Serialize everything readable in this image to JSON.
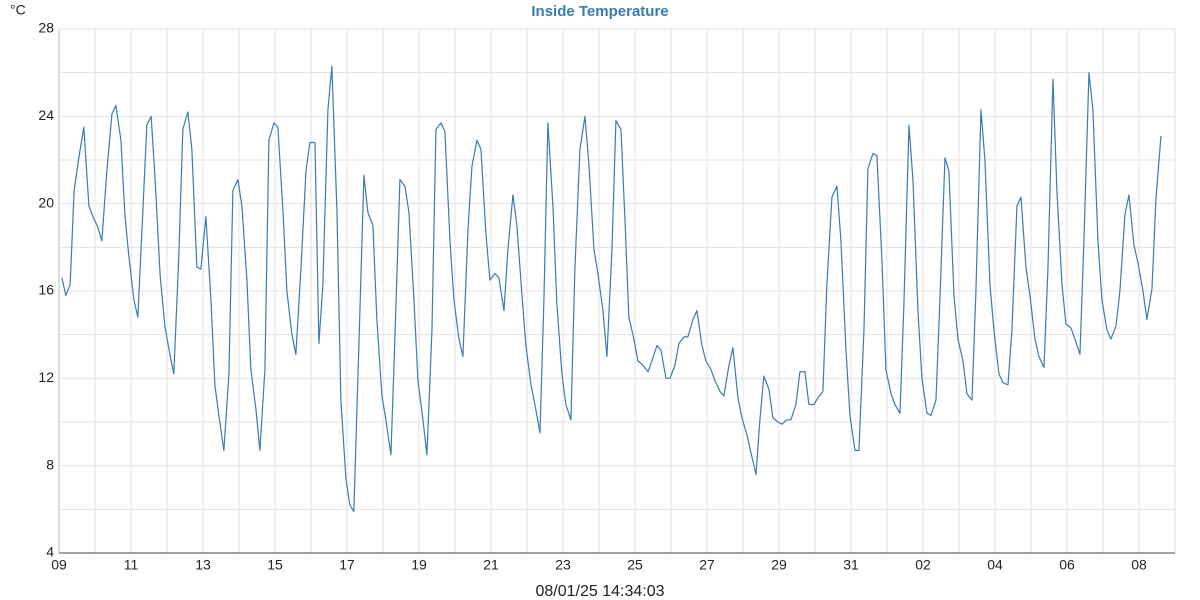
{
  "chart_data": {
    "type": "line",
    "title": "Inside Temperature",
    "ylabel": "°C",
    "xlabel": "08/01/25 14:34:03",
    "xlim": [
      0,
      31
    ],
    "ylim": [
      4,
      28
    ],
    "xticks": [
      {
        "value": 0,
        "label": "09"
      },
      {
        "value": 2,
        "label": "11"
      },
      {
        "value": 4,
        "label": "13"
      },
      {
        "value": 6,
        "label": "15"
      },
      {
        "value": 8,
        "label": "17"
      },
      {
        "value": 10,
        "label": "19"
      },
      {
        "value": 12,
        "label": "21"
      },
      {
        "value": 14,
        "label": "23"
      },
      {
        "value": 16,
        "label": "25"
      },
      {
        "value": 18,
        "label": "27"
      },
      {
        "value": 20,
        "label": "29"
      },
      {
        "value": 22,
        "label": "31"
      },
      {
        "value": 24,
        "label": "02"
      },
      {
        "value": 26,
        "label": "04"
      },
      {
        "value": 28,
        "label": "06"
      },
      {
        "value": 30,
        "label": "08"
      }
    ],
    "x_minor_ticks": [
      1,
      3,
      5,
      7,
      9,
      11,
      13,
      15,
      17,
      19,
      21,
      23,
      25,
      27,
      29,
      31
    ],
    "yticks": [
      4,
      8,
      12,
      16,
      20,
      24,
      28
    ],
    "y_minor_ticks": [
      6,
      10,
      14,
      18,
      22,
      26
    ],
    "grid": true,
    "series": [
      {
        "name": "Inside Temperature",
        "color": "#3a7bb5",
        "x": [
          0.08,
          0.19,
          0.31,
          0.42,
          0.56,
          0.69,
          0.83,
          0.97,
          1.06,
          1.19,
          1.33,
          1.47,
          1.58,
          1.72,
          1.83,
          1.94,
          2.08,
          2.19,
          2.33,
          2.44,
          2.56,
          2.67,
          2.81,
          2.94,
          3.08,
          3.19,
          3.33,
          3.44,
          3.58,
          3.69,
          3.83,
          3.94,
          4.08,
          4.22,
          4.33,
          4.44,
          4.58,
          4.72,
          4.83,
          4.97,
          5.08,
          5.22,
          5.33,
          5.47,
          5.58,
          5.72,
          5.83,
          5.97,
          6.08,
          6.22,
          6.33,
          6.47,
          6.58,
          6.72,
          6.86,
          6.97,
          7.11,
          7.22,
          7.33,
          7.47,
          7.58,
          7.72,
          7.83,
          7.97,
          8.08,
          8.19,
          8.33,
          8.47,
          8.58,
          8.72,
          8.83,
          8.97,
          9.08,
          9.22,
          9.33,
          9.47,
          9.61,
          9.72,
          9.86,
          9.97,
          10.11,
          10.22,
          10.36,
          10.47,
          10.61,
          10.72,
          10.86,
          10.97,
          11.11,
          11.22,
          11.36,
          11.47,
          11.61,
          11.72,
          11.86,
          11.97,
          12.11,
          12.22,
          12.36,
          12.47,
          12.61,
          12.72,
          12.86,
          12.97,
          13.11,
          13.22,
          13.36,
          13.47,
          13.58,
          13.72,
          13.83,
          13.97,
          14.08,
          14.22,
          14.33,
          14.47,
          14.61,
          14.72,
          14.86,
          14.97,
          15.11,
          15.22,
          15.36,
          15.47,
          15.61,
          15.72,
          15.83,
          15.97,
          16.08,
          16.22,
          16.36,
          16.47,
          16.61,
          16.72,
          16.86,
          16.97,
          17.11,
          17.22,
          17.36,
          17.47,
          17.61,
          17.72,
          17.86,
          17.97,
          18.11,
          18.22,
          18.36,
          18.47,
          18.61,
          18.72,
          18.86,
          18.97,
          19.11,
          19.22,
          19.36,
          19.47,
          19.58,
          19.72,
          19.83,
          19.97,
          20.08,
          20.22,
          20.33,
          20.47,
          20.58,
          20.72,
          20.83,
          20.97,
          21.08,
          21.22,
          21.33,
          21.47,
          21.61,
          21.72,
          21.86,
          21.97,
          22.11,
          22.22,
          22.36,
          22.47,
          22.61,
          22.72,
          22.86,
          22.97,
          23.11,
          23.22,
          23.36,
          23.47,
          23.61,
          23.72,
          23.86,
          23.97,
          24.11,
          24.22,
          24.36,
          24.47,
          24.61,
          24.72,
          24.86,
          24.97,
          25.11,
          25.22,
          25.36,
          25.47,
          25.61,
          25.72,
          25.86,
          25.97,
          26.11,
          26.22,
          26.36,
          26.47,
          26.61,
          26.72,
          26.86,
          26.97,
          27.11,
          27.22,
          27.36,
          27.47,
          27.61,
          27.72,
          27.86,
          27.97,
          28.11,
          28.22,
          28.36,
          28.47,
          28.61,
          28.72,
          28.86,
          28.97,
          29.11,
          29.22,
          29.36,
          29.47,
          29.61,
          29.72,
          29.86,
          29.97,
          30.11,
          30.22,
          30.36,
          30.47,
          30.61
        ],
        "values": [
          16.6,
          15.8,
          16.3,
          20.6,
          22.2,
          23.5,
          19.9,
          19.3,
          19.0,
          18.3,
          21.5,
          24.1,
          24.5,
          22.9,
          19.5,
          17.6,
          15.6,
          14.8,
          19.7,
          23.6,
          24.0,
          21.1,
          16.7,
          14.4,
          13.1,
          12.2,
          17.7,
          23.4,
          24.2,
          22.5,
          17.1,
          17.0,
          19.4,
          15.6,
          11.7,
          10.3,
          8.7,
          12.2,
          20.6,
          21.1,
          19.9,
          16.5,
          12.4,
          10.6,
          8.7,
          12.4,
          22.9,
          23.7,
          23.5,
          19.7,
          16.0,
          14.0,
          13.1,
          17.0,
          21.5,
          22.8,
          22.8,
          13.6,
          16.3,
          24.3,
          26.3,
          19.7,
          11.0,
          7.4,
          6.2,
          5.9,
          13.5,
          21.3,
          19.6,
          19.0,
          14.7,
          11.2,
          10.1,
          8.5,
          13.8,
          21.1,
          20.8,
          19.6,
          15.6,
          11.9,
          10.1,
          8.5,
          14.2,
          23.4,
          23.7,
          23.3,
          18.3,
          15.6,
          13.8,
          13.0,
          18.8,
          21.7,
          22.9,
          22.5,
          18.6,
          16.5,
          16.8,
          16.6,
          15.1,
          17.9,
          20.4,
          19.0,
          15.8,
          13.5,
          11.7,
          10.8,
          9.5,
          15.6,
          23.7,
          19.9,
          15.4,
          12.2,
          10.8,
          10.1,
          17.0,
          22.5,
          24.0,
          21.8,
          17.9,
          16.8,
          15.1,
          13.0,
          17.9,
          23.8,
          23.4,
          19.3,
          14.8,
          13.8,
          12.8,
          12.6,
          12.3,
          12.8,
          13.5,
          13.3,
          12.0,
          12.0,
          12.6,
          13.6,
          13.9,
          13.9,
          14.7,
          15.1,
          13.5,
          12.8,
          12.4,
          11.9,
          11.4,
          11.2,
          12.6,
          13.4,
          11.1,
          10.2,
          9.4,
          8.6,
          7.6,
          10.1,
          12.1,
          11.5,
          10.2,
          10.0,
          9.9,
          10.1,
          10.1,
          10.8,
          12.3,
          12.3,
          10.8,
          10.8,
          11.1,
          11.4,
          16.3,
          20.3,
          20.8,
          18.3,
          13.3,
          10.3,
          8.7,
          8.7,
          14.2,
          21.6,
          22.3,
          22.2,
          17.4,
          12.4,
          11.3,
          10.8,
          10.4,
          15.4,
          23.6,
          21.1,
          15.1,
          12.0,
          10.4,
          10.3,
          11.0,
          15.6,
          22.1,
          21.5,
          15.8,
          13.8,
          12.8,
          11.3,
          11.0,
          16.0,
          24.3,
          22.0,
          16.3,
          14.2,
          12.2,
          11.8,
          11.7,
          14.2,
          19.9,
          20.3,
          17.1,
          15.8,
          13.8,
          13.0,
          12.5,
          17.0,
          25.7,
          20.6,
          16.3,
          14.5,
          14.3,
          13.8,
          13.1,
          18.3,
          26.0,
          24.3,
          18.3,
          15.6,
          14.2,
          13.8,
          14.4,
          16.0,
          19.5,
          20.4,
          18.1,
          17.3,
          16.0,
          14.7,
          16.1,
          20.2,
          23.1
        ]
      }
    ]
  }
}
